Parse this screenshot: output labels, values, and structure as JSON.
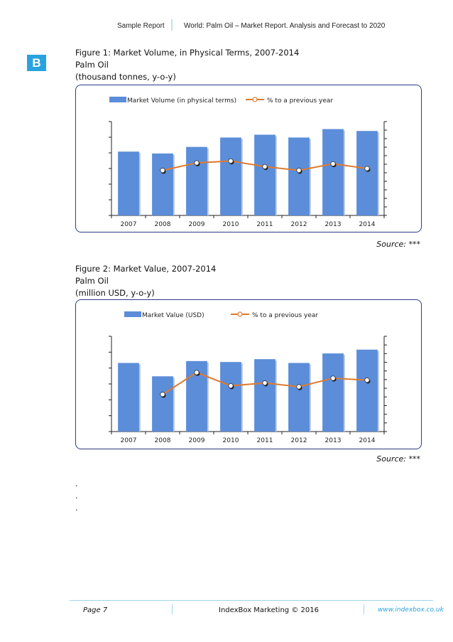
{
  "header": {
    "left": "Sample Report",
    "right": "World: Palm Oil – Market Report. Analysis and Forecast to 2020"
  },
  "logo": {
    "letter": "B",
    "color": "#29a3df"
  },
  "figures": [
    {
      "title": "Figure 1: Market Volume, in Physical Terms, 2007-2014",
      "product": "Palm Oil",
      "units": "(thousand tonnes, y-o-y)",
      "source": "Source: ***"
    },
    {
      "title": "Figure 2: Market Value, 2007-2014",
      "product": "Palm Oil",
      "units": "(million USD, y-o-y)",
      "source": "Source: ***"
    }
  ],
  "chart_data": [
    {
      "type": "bar",
      "categories": [
        "2007",
        "2008",
        "2009",
        "2010",
        "2011",
        "2012",
        "2013",
        "2014"
      ],
      "series": [
        {
          "name": "Market Volume (in physical terms)",
          "type": "bar",
          "values": [
            68,
            66,
            73,
            83,
            86,
            83,
            92,
            90
          ],
          "color": "#5b8dd9"
        },
        {
          "name": "% to a previous year",
          "type": "line",
          "values": [
            null,
            48,
            56,
            58,
            52,
            48,
            55,
            50
          ],
          "color": "#e07a2e"
        }
      ],
      "ylim": [
        0,
        100
      ],
      "legend": "top",
      "grid": false
    },
    {
      "type": "bar",
      "categories": [
        "2007",
        "2008",
        "2009",
        "2010",
        "2011",
        "2012",
        "2013",
        "2014"
      ],
      "series": [
        {
          "name": "Market Value (USD)",
          "type": "bar",
          "values": [
            72,
            58,
            74,
            73,
            76,
            72,
            82,
            86
          ],
          "color": "#5b8dd9"
        },
        {
          "name": "% to a previous year",
          "type": "line",
          "values": [
            null,
            39,
            62,
            48,
            51,
            47,
            56,
            54
          ],
          "color": "#e07a2e"
        }
      ],
      "ylim": [
        0,
        100
      ],
      "legend": "top",
      "grid": false
    }
  ],
  "ellipsis": [
    ".",
    ".",
    "."
  ],
  "footer": {
    "page": "Page 7",
    "center": "IndexBox Marketing © 2016",
    "url": "www.indexbox.co.uk"
  }
}
